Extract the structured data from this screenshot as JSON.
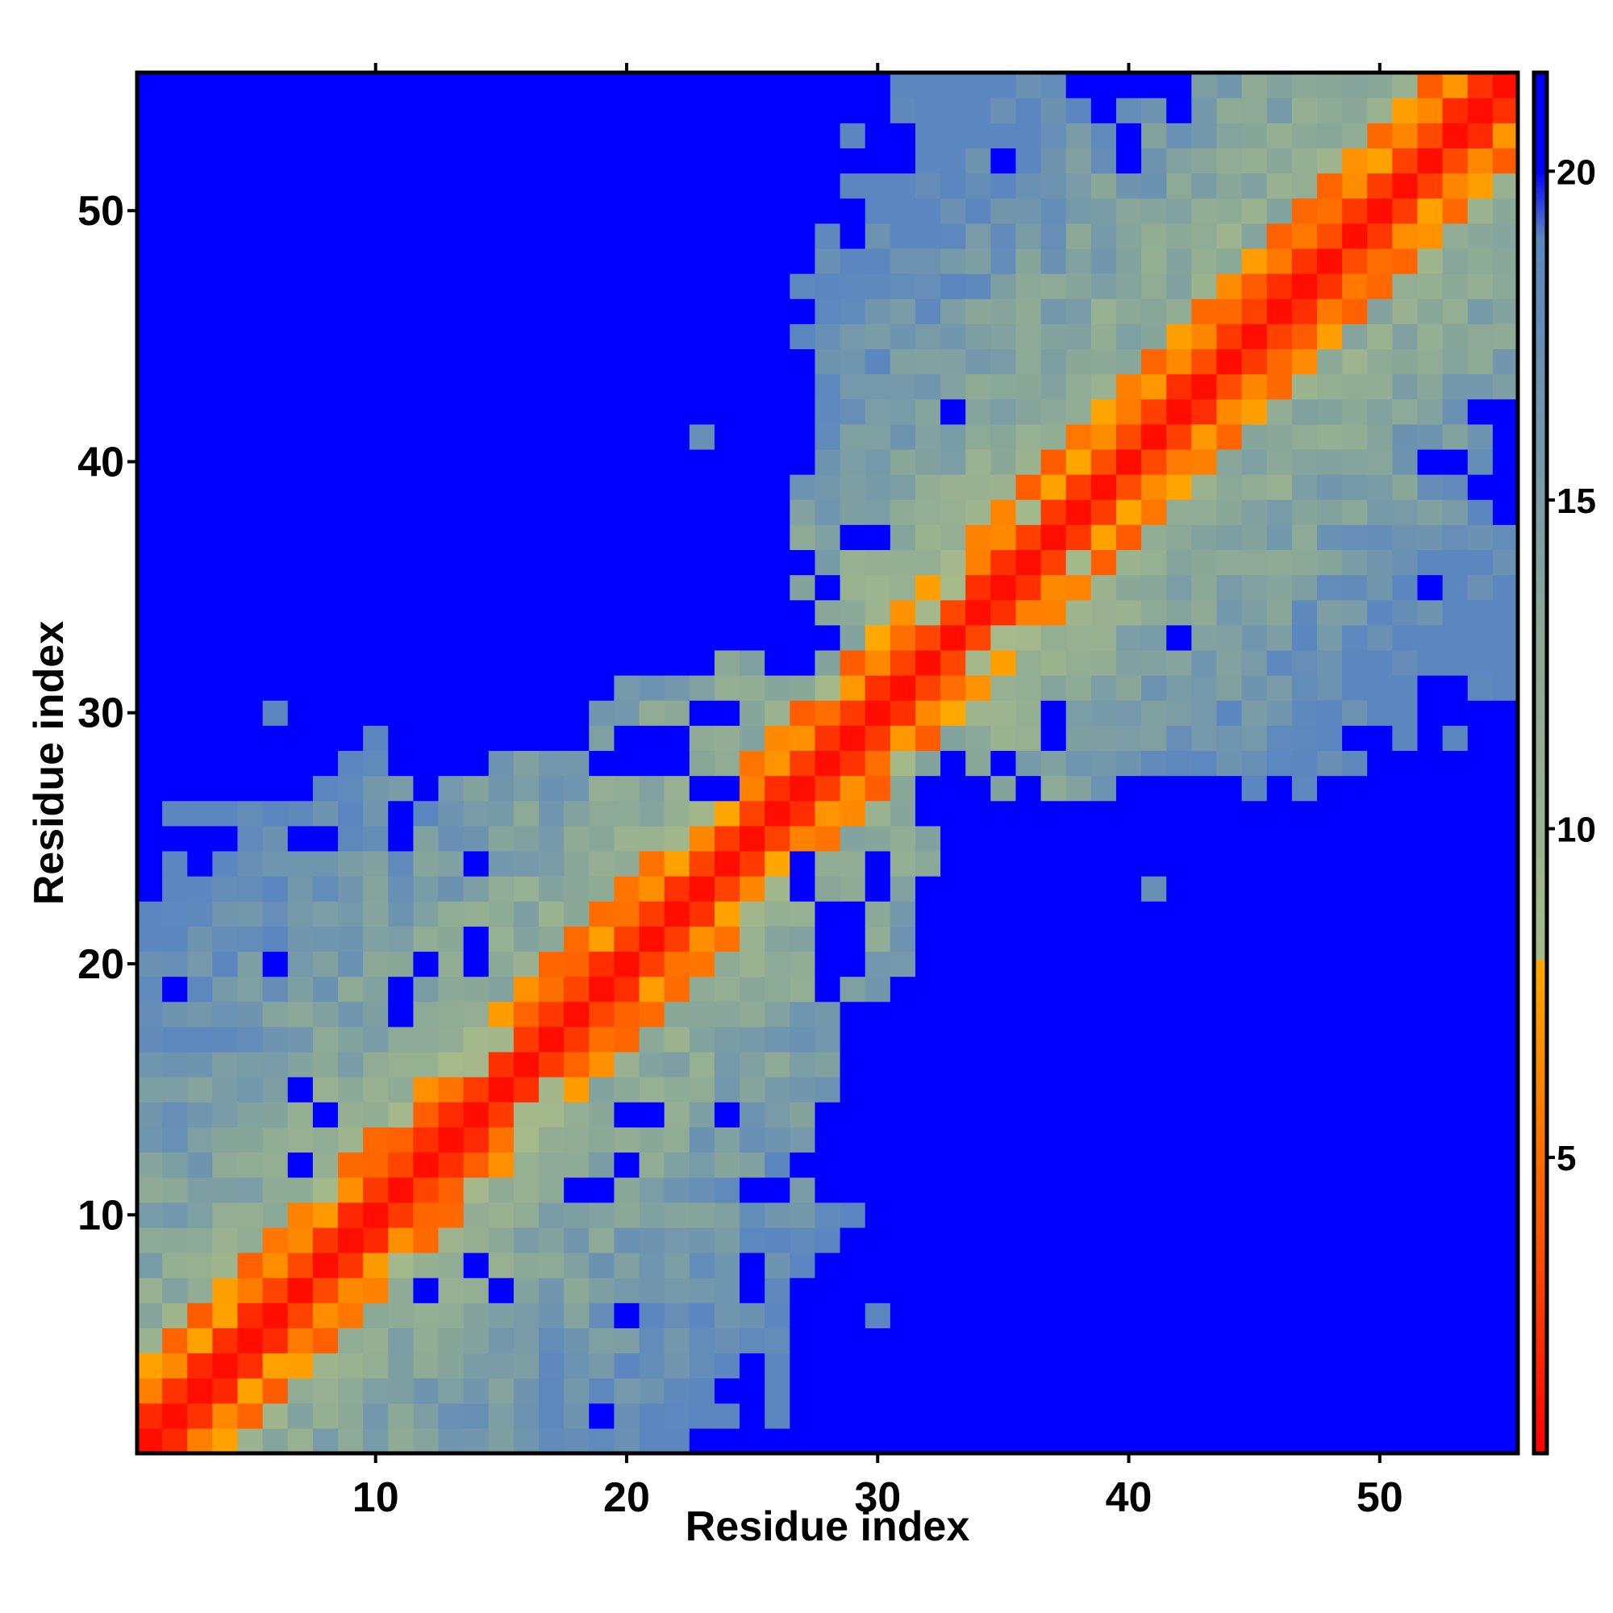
{
  "chart_data": {
    "type": "heatmap",
    "title": "",
    "xlabel": "Residue index",
    "ylabel": "Residue index",
    "n_residues": 55,
    "x_ticks": [
      10,
      20,
      30,
      40,
      50
    ],
    "y_ticks": [
      10,
      20,
      30,
      40,
      50
    ],
    "xlim": [
      0.5,
      55.5
    ],
    "ylim": [
      0.5,
      55.5
    ],
    "colorbar": {
      "ticks": [
        5,
        10,
        15,
        20
      ],
      "range": [
        0.5,
        21.5
      ],
      "stops": [
        {
          "value": 0.5,
          "color": "#ff0000"
        },
        {
          "value": 4.0,
          "color": "#ff5a00"
        },
        {
          "value": 8.0,
          "color": "#ffa800"
        },
        {
          "value": 8.01,
          "color": "#a5b98a"
        },
        {
          "value": 13.0,
          "color": "#8aa898"
        },
        {
          "value": 19.0,
          "color": "#5b86c0"
        },
        {
          "value": 20.0,
          "color": "#0000ff"
        },
        {
          "value": 21.5,
          "color": "#0000ff"
        }
      ]
    },
    "matrix_rule": "Symmetric distance matrix d(i,j); d approximately 1 on the diagonal, growing with |i-j|; cells at or above 20 are blue. The rows below list, for each residue i from 1 to 55, the cells drawn blue.",
    "blue_cells": [
      [
        23,
        24,
        25,
        26,
        27,
        28,
        29,
        30,
        31,
        32,
        33,
        34,
        35,
        36,
        37,
        38,
        39,
        40,
        41,
        42,
        43,
        44,
        45,
        46,
        47,
        48,
        49,
        50,
        51,
        52,
        53,
        54,
        55
      ],
      [
        19,
        27,
        28,
        29,
        30,
        31,
        32,
        33,
        34,
        35,
        36,
        37,
        38,
        39,
        40,
        41,
        42,
        43,
        44,
        45,
        46,
        47,
        48,
        49,
        50,
        51,
        52,
        53,
        54,
        55
      ],
      [
        24,
        25,
        28,
        29,
        30,
        31,
        32,
        33,
        34,
        35,
        36,
        37,
        38,
        39,
        40,
        41,
        42,
        43,
        44,
        45,
        46,
        47,
        48,
        49,
        50,
        51,
        52,
        53,
        54,
        55
      ],
      [
        25,
        27,
        30,
        31,
        32,
        33,
        34,
        35,
        36,
        37,
        38,
        39,
        40,
        41,
        42,
        43,
        44,
        45,
        46,
        47,
        48,
        49,
        50,
        51,
        52,
        53,
        54,
        55
      ],
      [
        27,
        30,
        31,
        32,
        33,
        34,
        35,
        36,
        37,
        38,
        39,
        40,
        41,
        42,
        43,
        44,
        45,
        46,
        47,
        48,
        49,
        50,
        51,
        52,
        53,
        54,
        55
      ],
      [
        20,
        29,
        33,
        34,
        35,
        36,
        37,
        38,
        40,
        42,
        43,
        44,
        45,
        46,
        47,
        48,
        49,
        50,
        51,
        52,
        53,
        54,
        55
      ],
      [
        12,
        25,
        27,
        28,
        30,
        31,
        32,
        33,
        34,
        35,
        36,
        37,
        38,
        39,
        40,
        41,
        42,
        43,
        44,
        45,
        46,
        47,
        48,
        49,
        50,
        51,
        52,
        53,
        54,
        55
      ],
      [
        29,
        30,
        31,
        32,
        33,
        34,
        35,
        36,
        37,
        38,
        39,
        40,
        41,
        42,
        43,
        44,
        45,
        46,
        47,
        48,
        49,
        50,
        51,
        52,
        53,
        54,
        55
      ],
      [
        29,
        30,
        31,
        32,
        33,
        34,
        35,
        36,
        37,
        38,
        39,
        40,
        41,
        42,
        43,
        44,
        45,
        46,
        47,
        48,
        49,
        50,
        51,
        52,
        53,
        54,
        55
      ],
      [
        30,
        31,
        32,
        33,
        34,
        35,
        36,
        37,
        38,
        39,
        40,
        41,
        42,
        43,
        44,
        45,
        46,
        47,
        48,
        49,
        50,
        51,
        52,
        53,
        54,
        55
      ],
      [
        18,
        26,
        29,
        30,
        31,
        32,
        33,
        34,
        35,
        36,
        37,
        38,
        39,
        40,
        41,
        42,
        43,
        44,
        45,
        46,
        47,
        48,
        49,
        50,
        51,
        52,
        53,
        54,
        55
      ],
      [
        27,
        29,
        30,
        31,
        32,
        33,
        34,
        35,
        36,
        37,
        38,
        39,
        40,
        41,
        42,
        43,
        44,
        45,
        46,
        47,
        48,
        49,
        50,
        51,
        52,
        53,
        54,
        55
      ],
      [
        28,
        29,
        30,
        31,
        32,
        33,
        34,
        35,
        36,
        37,
        38,
        39,
        40,
        41,
        42,
        43,
        44,
        45,
        46,
        47,
        48,
        49,
        50,
        51,
        52,
        53,
        54,
        55
      ],
      [
        8,
        20,
        24,
        28,
        29,
        30,
        31,
        32,
        33,
        34,
        35,
        36,
        37,
        38,
        39,
        40,
        41,
        42,
        43,
        44,
        45,
        46,
        47,
        48,
        49,
        50,
        51,
        52,
        53,
        54,
        55
      ],
      [
        7,
        29,
        30,
        31,
        32,
        33,
        34,
        35,
        36,
        37,
        38,
        39,
        40,
        41,
        42,
        43,
        44,
        45,
        46,
        47,
        48,
        49,
        50,
        51,
        52,
        53,
        54,
        55
      ],
      [
        29,
        30,
        31,
        32,
        33,
        34,
        35,
        36,
        37,
        38,
        39,
        40,
        41,
        42,
        43,
        44,
        45,
        46,
        47,
        48,
        49,
        50,
        51,
        52,
        53,
        54,
        55
      ],
      [
        29,
        30,
        31,
        32,
        33,
        34,
        35,
        36,
        37,
        38,
        39,
        40,
        41,
        42,
        43,
        44,
        45,
        46,
        47,
        48,
        49,
        50,
        51,
        52,
        53,
        54,
        55
      ],
      [
        29,
        30,
        31,
        32,
        33,
        34,
        35,
        36,
        37,
        38,
        39,
        40,
        41,
        42,
        43,
        44,
        45,
        46,
        47,
        48,
        49,
        50,
        51,
        52,
        53,
        54,
        55
      ],
      [
        11,
        28,
        31,
        32,
        33,
        34,
        35,
        36,
        37,
        38,
        39,
        40,
        41,
        42,
        43,
        44,
        45,
        46,
        47,
        48,
        49,
        50,
        51,
        52,
        53,
        54,
        55
      ],
      [
        6,
        12,
        28,
        29,
        33,
        34,
        35,
        36,
        37,
        38,
        39,
        40,
        42,
        43,
        44,
        45,
        46,
        47,
        48,
        49,
        50,
        51,
        52,
        53,
        54,
        55
      ],
      [
        14,
        29,
        32,
        33,
        34,
        35,
        36,
        37,
        38,
        39,
        40,
        42,
        43,
        44,
        45,
        46,
        47,
        48,
        49,
        50,
        51,
        52,
        53,
        54,
        55
      ],
      [
        29,
        32,
        33,
        34,
        35,
        36,
        37,
        38,
        39,
        41,
        43,
        44,
        45,
        46,
        47,
        48,
        49,
        50,
        51,
        52,
        53,
        54,
        55
      ],
      [
        32,
        33,
        34,
        35,
        36,
        37,
        38,
        40,
        42,
        43,
        44,
        45,
        46,
        47,
        48,
        49,
        50,
        51,
        52,
        53,
        54,
        55
      ],
      [
        14,
        27,
        30,
        33,
        34,
        35,
        36,
        37,
        38,
        39,
        40,
        43,
        44,
        45,
        46,
        47,
        48,
        49,
        50,
        51,
        52,
        53,
        54,
        55
      ],
      [
        2,
        4,
        8,
        11,
        33,
        34,
        35,
        36,
        37,
        38,
        39,
        40,
        42,
        43,
        44,
        45,
        46,
        47,
        48,
        49,
        50,
        51,
        52,
        53,
        54,
        55
      ],
      [
        33,
        34,
        35,
        36,
        37,
        38,
        39,
        40,
        41,
        42,
        43,
        44,
        45,
        46,
        47,
        48,
        49,
        50,
        51,
        52,
        53,
        54,
        55
      ],
      [
        1,
        2,
        3,
        4,
        5,
        6,
        23,
        32,
        33,
        34,
        46,
        48,
        49,
        50,
        51,
        52,
        53,
        54,
        55
      ],
      [
        1,
        2,
        3,
        4,
        5,
        6,
        8,
        11,
        12,
        13,
        14,
        19,
        20,
        21,
        22,
        33,
        35,
        50,
        51,
        52,
        53,
        54,
        55
      ],
      [
        1,
        2,
        3,
        4,
        5,
        7,
        9,
        12,
        13,
        14,
        20,
        21,
        37,
        49,
        54,
        55
      ],
      [
        1,
        2,
        3,
        4,
        23,
        24,
        37,
        52,
        53,
        54,
        55
      ],
      [
        1,
        2,
        3,
        4,
        5,
        6,
        7,
        9,
        10,
        11,
        12,
        13,
        14,
        15,
        16,
        17,
        18,
        19,
        53
      ],
      [
        1,
        2,
        3,
        4,
        5,
        6,
        8,
        9,
        10,
        11,
        12,
        13,
        14,
        15,
        16,
        17,
        18,
        19,
        20,
        21,
        22,
        26,
        27
      ],
      [
        1,
        2,
        3,
        4,
        5,
        6,
        7,
        8,
        9,
        10,
        11,
        12,
        13,
        14,
        15,
        16,
        17,
        18,
        19,
        20,
        21,
        22,
        23,
        24,
        25,
        26,
        27,
        42
      ],
      [
        1,
        2,
        3,
        4,
        5,
        6,
        7,
        8,
        9,
        10,
        11,
        12,
        13,
        14,
        15,
        16,
        17,
        18,
        19,
        20,
        21,
        22,
        23,
        24,
        25,
        26,
        27
      ],
      [
        1,
        2,
        3,
        4,
        5,
        6,
        7,
        8,
        9,
        10,
        11,
        12,
        13,
        14,
        15,
        16,
        17,
        18,
        19,
        20,
        21,
        22,
        23,
        24,
        25,
        26,
        52
      ],
      [
        1,
        2,
        3,
        4,
        5,
        6,
        7,
        8,
        9,
        10,
        11,
        12,
        13,
        14,
        15,
        16,
        17,
        18,
        19,
        20,
        21,
        22,
        23,
        24,
        25,
        26,
        27
      ],
      [
        1,
        2,
        3,
        4,
        5,
        6,
        7,
        8,
        9,
        10,
        11,
        12,
        13,
        14,
        15,
        16,
        17,
        18,
        19,
        20,
        21,
        22,
        23,
        24,
        25,
        26,
        29,
        30
      ],
      [
        1,
        2,
        3,
        4,
        5,
        6,
        7,
        8,
        9,
        10,
        11,
        12,
        13,
        14,
        15,
        16,
        17,
        18,
        19,
        20,
        21,
        22,
        23,
        24,
        25
      ],
      [
        1,
        2,
        3,
        4,
        5,
        6,
        7,
        8,
        9,
        10,
        11,
        12,
        13,
        14,
        15,
        16,
        17,
        18,
        19,
        20,
        21,
        22,
        23,
        24,
        25,
        55
      ],
      [
        1,
        2,
        3,
        4,
        5,
        6,
        8,
        9,
        10,
        11,
        12,
        13,
        14,
        15,
        16,
        17,
        18,
        19,
        20,
        21,
        22,
        23,
        24,
        25,
        26,
        27,
        52,
        53
      ],
      [
        1,
        2,
        3,
        4,
        5,
        6,
        7,
        8,
        9,
        10,
        11,
        12,
        13,
        14,
        15,
        16,
        17,
        18,
        19,
        20,
        21,
        22,
        24,
        25,
        26,
        27
      ],
      [
        1,
        2,
        3,
        4,
        5,
        6,
        8,
        9,
        10,
        11,
        12,
        13,
        14,
        15,
        16,
        17,
        18,
        19,
        20,
        21,
        22,
        23,
        24,
        25,
        26,
        27,
        54,
        55
      ],
      [
        1,
        2,
        3,
        4,
        5,
        6,
        7,
        8,
        9,
        10,
        11,
        12,
        13,
        14,
        15,
        16,
        17,
        18,
        19,
        20,
        23,
        24,
        25,
        26,
        27
      ],
      [
        1,
        2,
        3,
        4,
        5,
        6,
        7,
        8,
        9,
        10,
        11,
        12,
        13,
        14,
        15,
        16,
        17,
        18,
        19,
        20,
        21,
        22,
        23,
        25,
        26,
        27
      ],
      [
        1,
        2,
        3,
        4,
        5,
        6,
        7,
        8,
        9,
        10,
        11,
        12,
        13,
        14,
        15,
        16,
        17,
        18,
        19,
        20,
        21,
        22,
        23,
        24,
        25
      ],
      [
        1,
        2,
        3,
        4,
        5,
        6,
        7,
        8,
        9,
        10,
        11,
        12,
        13,
        14,
        15,
        16,
        17,
        18,
        19,
        20,
        21,
        22,
        27
      ],
      [
        1,
        2,
        3,
        4,
        5,
        6,
        7,
        8,
        9,
        10,
        11,
        12,
        13,
        14,
        15,
        16,
        17,
        18,
        19,
        20,
        21,
        22
      ],
      [
        1,
        2,
        3,
        4,
        5,
        6,
        7,
        8,
        9,
        10,
        11,
        12,
        13,
        14,
        15,
        16,
        17,
        18,
        19,
        20,
        21,
        22,
        23,
        24,
        25,
        26
      ],
      [
        1,
        2,
        3,
        4,
        5,
        6,
        7,
        8,
        9,
        10,
        11,
        12,
        13,
        14,
        15,
        16,
        17,
        18,
        19,
        20,
        21,
        22,
        23,
        24,
        25,
        26
      ],
      [
        1,
        2,
        3,
        4,
        5,
        6,
        7,
        8,
        9,
        10,
        11,
        12,
        13,
        14,
        15,
        16,
        17,
        18,
        19,
        20,
        21,
        22,
        23,
        24,
        25,
        26,
        27,
        29
      ],
      [
        1,
        2,
        3,
        4,
        5,
        6,
        7,
        8,
        9,
        10,
        11,
        12,
        13,
        14,
        15,
        16,
        17,
        18,
        19,
        20,
        21,
        22,
        23,
        24,
        25,
        26,
        27,
        28
      ],
      [
        1,
        2,
        3,
        4,
        5,
        6,
        7,
        8,
        9,
        10,
        11,
        12,
        13,
        14,
        15,
        16,
        17,
        18,
        19,
        20,
        21,
        22,
        23,
        24,
        25,
        26,
        27,
        28,
        29,
        31,
        35
      ],
      [
        1,
        2,
        3,
        4,
        5,
        6,
        7,
        8,
        9,
        10,
        11,
        12,
        13,
        14,
        15,
        16,
        17,
        18,
        19,
        20,
        21,
        22,
        23,
        24,
        25,
        26,
        27,
        28
      ],
      [
        1,
        2,
        3,
        4,
        5,
        6,
        7,
        8,
        9,
        10,
        11,
        12,
        13,
        14,
        15,
        16,
        17,
        18,
        19,
        20,
        21,
        22,
        23,
        24,
        25,
        26,
        27,
        28,
        29,
        39
      ],
      [
        1,
        2,
        3,
        4,
        5,
        6,
        7,
        8,
        9,
        10,
        11,
        12,
        13,
        14,
        15,
        16,
        17,
        18,
        19,
        20,
        21,
        22,
        23,
        24,
        25,
        26,
        27,
        28,
        29,
        30,
        38,
        40,
        41
      ]
    ]
  }
}
